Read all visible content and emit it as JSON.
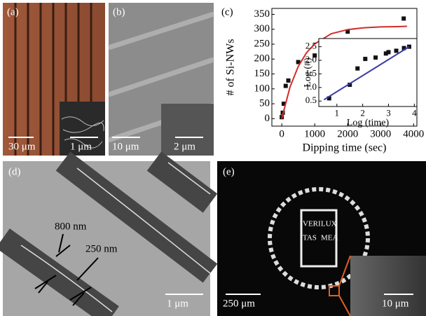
{
  "panels": {
    "a": {
      "label": "(a)",
      "scale_bars": [
        "30 μm",
        "1 μm"
      ]
    },
    "b": {
      "label": "(b)",
      "scale_bars": [
        "10 μm",
        "2 μm"
      ]
    },
    "c": {
      "label": "(c)"
    },
    "d": {
      "label": "(d)",
      "annotations": [
        "800 nm",
        "250 nm"
      ],
      "scale_bars": [
        "1 μm"
      ]
    },
    "e": {
      "label": "(e)",
      "logo_text": [
        "VERI",
        "LUX",
        "TAS",
        "MEA"
      ],
      "scale_bars": [
        "250 μm",
        "10 μm"
      ]
    }
  },
  "chart_data": [
    {
      "type": "scatter",
      "xlabel": "Dipping time (sec)",
      "ylabel": "# of Si-NWs",
      "xlim": [
        -300,
        4100
      ],
      "ylim": [
        -25,
        370
      ],
      "xticks": [
        0,
        1000,
        2000,
        3000,
        4000
      ],
      "yticks": [
        0,
        50,
        100,
        150,
        200,
        250,
        300,
        350
      ],
      "series": [
        {
          "style": "markers",
          "color": "#111111",
          "x": [
            0,
            30,
            60,
            120,
            200,
            500,
            1000,
            2000,
            3700
          ],
          "values": [
            5,
            20,
            50,
            110,
            128,
            190,
            212,
            292,
            336
          ]
        },
        {
          "style": "line",
          "color": "#d22b2b",
          "x": [
            0,
            250,
            500,
            750,
            1000,
            1500,
            2000,
            2500,
            3000,
            3500,
            3800
          ],
          "values": [
            0,
            106,
            175,
            221,
            251,
            285,
            299,
            305,
            308,
            309,
            310
          ]
        }
      ]
    },
    {
      "type": "scatter",
      "xlabel": "Log (time)",
      "ylabel": "Log (#)",
      "xlim": [
        0.3,
        4.1
      ],
      "ylim": [
        0.3,
        2.8
      ],
      "xticks": [
        1,
        2,
        3,
        4
      ],
      "yticks": [
        {
          "value": 0.5,
          "label": "0.5"
        },
        {
          "value": 1,
          "label": "1.0"
        },
        {
          "value": 1.5,
          "label": "1.5"
        },
        {
          "value": 2,
          "label": "2.0"
        },
        {
          "value": 2.5,
          "label": "2.5"
        }
      ],
      "series": [
        {
          "style": "markers",
          "color": "#111111",
          "x": [
            0.7,
            1.5,
            1.8,
            2.1,
            2.5,
            2.9,
            3.0,
            3.3,
            3.6,
            3.8
          ],
          "values": [
            0.6,
            1.1,
            1.7,
            2.05,
            2.1,
            2.25,
            2.3,
            2.35,
            2.45,
            2.5
          ]
        },
        {
          "style": "line",
          "color": "#3a3aa8",
          "x": [
            0.5,
            3.8
          ],
          "values": [
            0.55,
            2.5
          ]
        }
      ]
    }
  ]
}
